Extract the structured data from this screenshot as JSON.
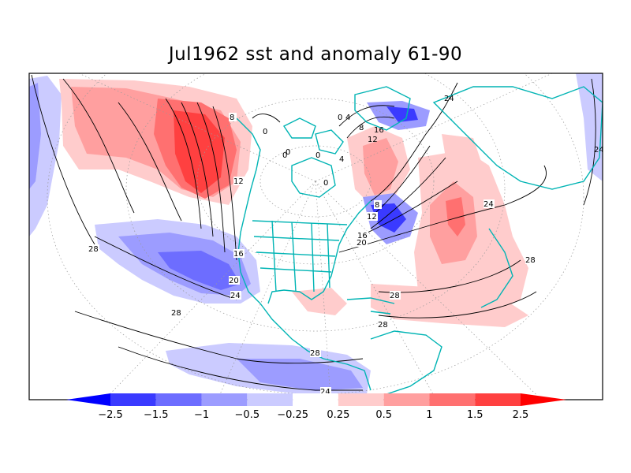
{
  "title": "Jul1962 sst and anomaly 61-90",
  "colorbar": {
    "labels": [
      "-2.5",
      "-1.5",
      "-1",
      "-0.5",
      "-0.25",
      "0.25",
      "0.5",
      "1",
      "1.5",
      "2.5"
    ],
    "colors": [
      "#0000ff",
      "#3a3aff",
      "#6d6dff",
      "#9c9cff",
      "#cbcbff",
      "#ffffff",
      "#ffcccc",
      "#ff9f9f",
      "#ff7070",
      "#ff4040",
      "#ff0000"
    ]
  },
  "contour_labels": [
    "0",
    "4",
    "8",
    "12",
    "16",
    "20",
    "24",
    "28"
  ],
  "map_labels": {
    "pacific_8": "8",
    "pacific_12": "12",
    "pacific_16": "16",
    "pacific_20": "20",
    "pacific_24": "24",
    "west_28": "28",
    "south_28a": "28",
    "south_28b": "28",
    "bottom_24": "24",
    "arctic_0a": "0",
    "arctic_0b": "0",
    "arctic_0c": "0",
    "greenland_4": "4",
    "greenland_8": "8",
    "labrador_8": "8",
    "labrador_12": "12",
    "atl_16": "16",
    "atl_20": "20",
    "atl_24": "24",
    "atl_28a": "28",
    "atl_28b": "28",
    "atl_28c": "28",
    "europe_24": "24",
    "farright_24": "24",
    "arctic_0d": "0",
    "arctic_4": "4",
    "arctic_0e": "0",
    "arctic_0f": "0",
    "arctic_12": "12",
    "arctic_16": "16"
  }
}
